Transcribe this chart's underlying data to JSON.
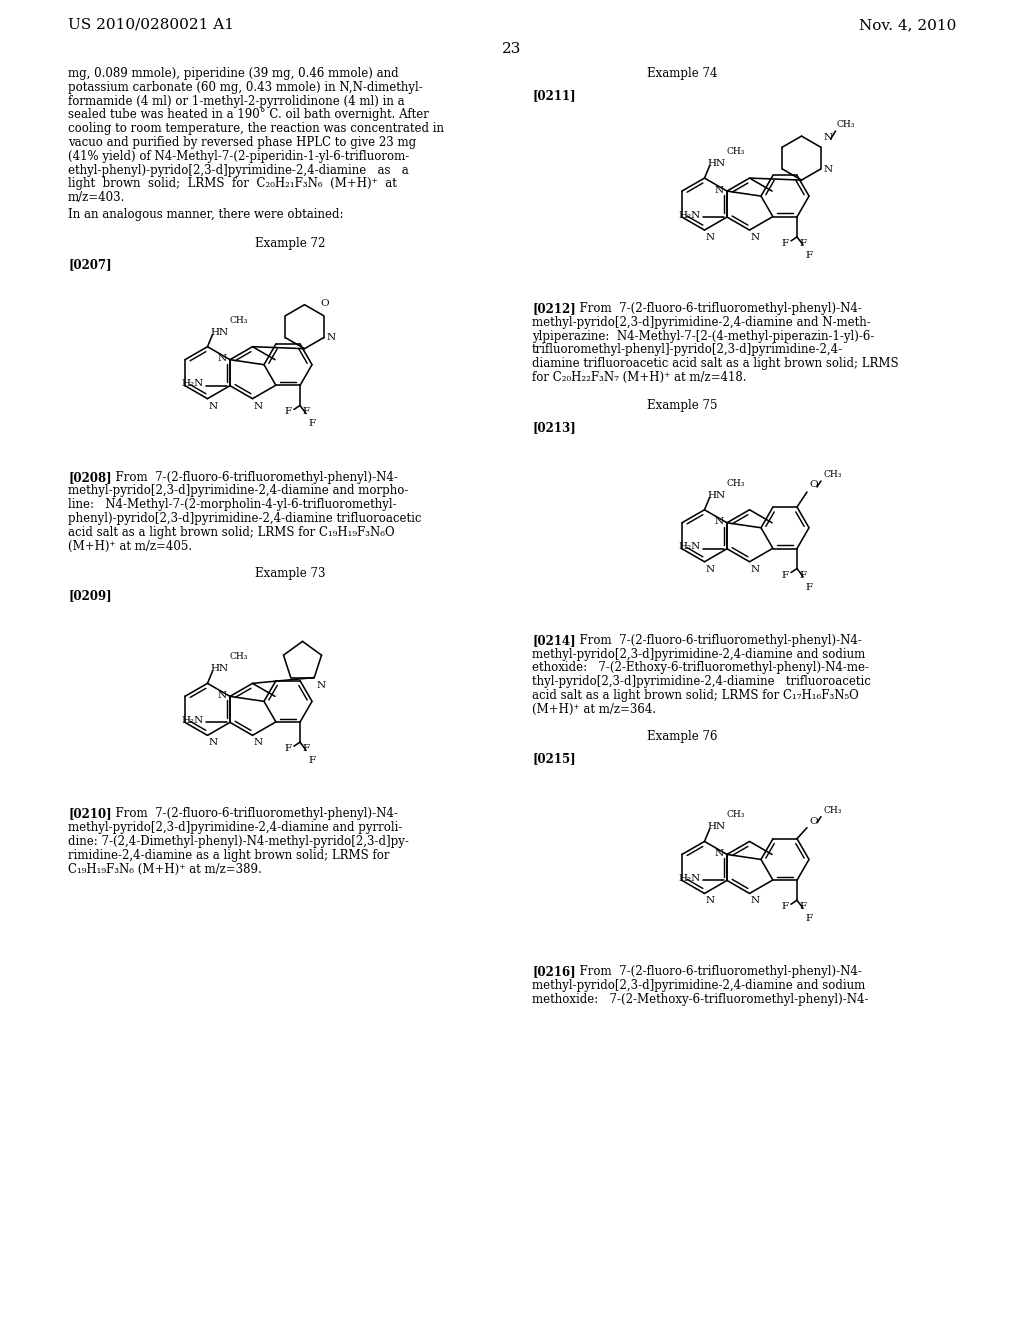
{
  "bg": "#ffffff",
  "header_left": "US 2010/0280021 A1",
  "header_right": "Nov. 4, 2010",
  "page_num": "23",
  "lh": 13.8,
  "left_top_lines": [
    "mg, 0.089 mmole), piperidine (39 mg, 0.46 mmole) and",
    "potassium carbonate (60 mg, 0.43 mmole) in N,N-dimethyl-",
    "formamide (4 ml) or 1-methyl-2-pyrrolidinone (4 ml) in a",
    "sealed tube was heated in a 190° C. oil bath overnight. After",
    "cooling to room temperature, the reaction was concentrated in",
    "vacuo and purified by reversed phase HPLC to give 23 mg",
    "(41% yield) of N4-Methyl-7-(2-piperidin-1-yl-6-trifluorom-",
    "ethyl-phenyl)-pyrido[2,3-d]pyrimidine-2,4-diamine   as   a",
    "light  brown  solid;  LRMS  for  C₂₀H₂₁F₃N₆  (M+H)⁺  at",
    "m/z=403."
  ],
  "cap208_lines": [
    "  From  7-(2-fluoro-6-trifluoromethyl-phenyl)-N4-",
    "methyl-pyrido[2,3-d]pyrimidine-2,4-diamine and morpho-",
    "line:   N4-Methyl-7-(2-morpholin-4-yl-6-trifluoromethyl-",
    "phenyl)-pyrido[2,3-d]pyrimidine-2,4-diamine trifluoroacetic",
    "acid salt as a light brown solid; LRMS for C₁₉H₁₉F₃N₆O",
    "(M+H)⁺ at m/z=405."
  ],
  "cap210_lines": [
    "  From  7-(2-fluoro-6-trifluoromethyl-phenyl)-N4-",
    "methyl-pyrido[2,3-d]pyrimidine-2,4-diamine and pyrroli-",
    "dine: 7-(2,4-Dimethyl-phenyl)-N4-methyl-pyrido[2,3-d]py-",
    "rimidine-2,4-diamine as a light brown solid; LRMS for",
    "C₁₉H₁₉F₃N₆ (M+H)⁺ at m/z=389."
  ],
  "cap212_lines": [
    "  From  7-(2-fluoro-6-trifluoromethyl-phenyl)-N4-",
    "methyl-pyrido[2,3-d]pyrimidine-2,4-diamine and N-meth-",
    "ylpiperazine:  N4-Methyl-7-[2-(4-methyl-piperazin-1-yl)-6-",
    "trifluoromethyl-phenyl]-pyrido[2,3-d]pyrimidine-2,4-",
    "diamine trifluoroacetic acid salt as a light brown solid; LRMS",
    "for C₂₀H₂₂F₃N₇ (M+H)⁺ at m/z=418."
  ],
  "cap214_lines": [
    "  From  7-(2-fluoro-6-trifluoromethyl-phenyl)-N4-",
    "methyl-pyrido[2,3-d]pyrimidine-2,4-diamine and sodium",
    "ethoxide:   7-(2-Ethoxy-6-trifluoromethyl-phenyl)-N4-me-",
    "thyl-pyrido[2,3-d]pyrimidine-2,4-diamine   trifluoroacetic",
    "acid salt as a light brown solid; LRMS for C₁₇H₁₆F₃N₅O",
    "(M+H)⁺ at m/z=364."
  ],
  "cap216_lines": [
    "  From  7-(2-fluoro-6-trifluoromethyl-phenyl)-N4-",
    "methyl-pyrido[2,3-d]pyrimidine-2,4-diamine and sodium",
    "methoxide:   7-(2-Methoxy-6-trifluoromethyl-phenyl)-N4-"
  ]
}
